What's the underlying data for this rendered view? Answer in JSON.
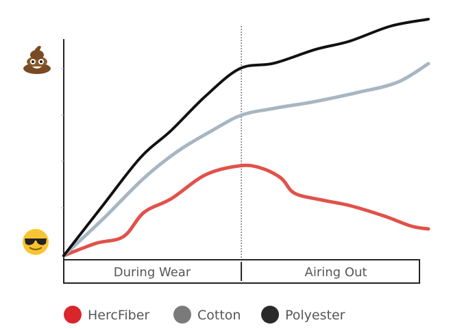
{
  "chart_data": {
    "type": "line",
    "title": "",
    "xlabel": "",
    "ylabel": "",
    "xlim": [
      0,
      100
    ],
    "ylim": [
      0,
      100
    ],
    "grid": false,
    "y_axis_icons": {
      "top": "poop-emoji",
      "bottom": "sunglasses-smiley-emoji"
    },
    "divider_x": 48.7,
    "phases": [
      "During Wear",
      "Airing Out"
    ],
    "legend_position": "bottom-left",
    "series": [
      {
        "name": "HercFiber",
        "color": "#e0524a",
        "legend_color": "#d9262b",
        "x": [
          0,
          8.8,
          16.4,
          22,
          29.5,
          38.9,
          48.3,
          54,
          59.6,
          63.3,
          70.9,
          78.4,
          87.8,
          95.3,
          100
        ],
        "y": [
          0,
          5.2,
          8.1,
          18.3,
          24.1,
          34.2,
          38,
          37.1,
          32.8,
          26.4,
          23.5,
          21.2,
          16.8,
          12.5,
          11.3
        ]
      },
      {
        "name": "Cotton",
        "color": "#a7b6c2",
        "legend_color": "#7a7a7a",
        "x": [
          0,
          10.7,
          22,
          31.4,
          40.8,
          48.7,
          57.7,
          69,
          80.3,
          91.5,
          100
        ],
        "y": [
          0,
          15.4,
          32.8,
          44.3,
          53,
          59.4,
          62.3,
          65.2,
          68.9,
          73.3,
          81.2
        ]
      },
      {
        "name": "Polyester",
        "color": "#111111",
        "legend_color": "#2a2a2a",
        "x": [
          0,
          10.7,
          21,
          29.5,
          38.9,
          48.3,
          57.7,
          69,
          78.4,
          89.7,
          100
        ],
        "y": [
          0,
          21.2,
          41.4,
          53,
          67.5,
          79.1,
          81.4,
          87.2,
          90.7,
          97.1,
          100
        ]
      }
    ]
  }
}
